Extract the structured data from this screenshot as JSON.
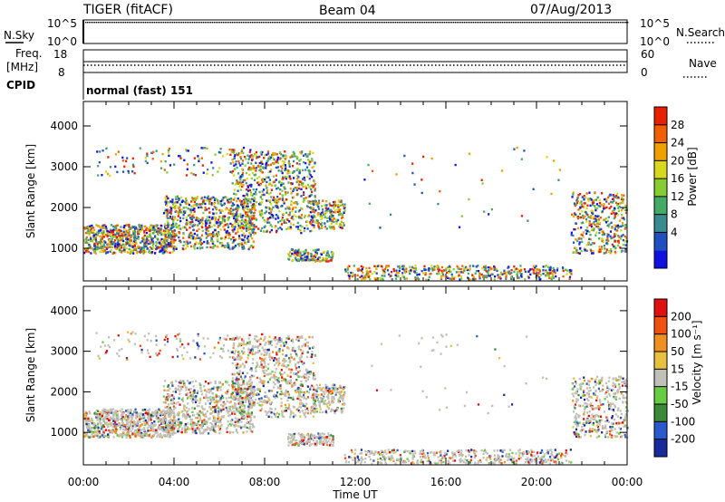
{
  "header": {
    "radar": "TIGER (fitACF)",
    "beam": "Beam 04",
    "date": "07/Aug/2013"
  },
  "params": {
    "nsky_label": "N.Sky",
    "nsky_ticks": [
      "10^5",
      "10^0"
    ],
    "nsearch_label": "N.Search",
    "nsearch_ticks": [
      "10^5",
      "10^0"
    ],
    "freq_label_1": "Freq.",
    "freq_label_2": "[MHz]",
    "freq_ticks": [
      "18",
      "8"
    ],
    "nave_label": "Nave",
    "nave_ticks": [
      "60",
      "0"
    ],
    "cpid_label": "CPID",
    "cpid_value": "normal (fast) 151"
  },
  "chart_data": [
    {
      "type": "heatmap",
      "name": "power",
      "ylabel": "Slant Range [km]",
      "yticks": [
        "4000",
        "3000",
        "2000",
        "1000"
      ],
      "xticks": [
        "00:00",
        "04:00",
        "08:00",
        "12:00",
        "16:00",
        "20:00",
        "00:00"
      ],
      "ylim": [
        200,
        4600
      ],
      "xlim_hours": [
        0,
        24
      ],
      "colorbar": {
        "label": "Power [dB]",
        "ticks": [
          "28",
          "24",
          "20",
          "16",
          "12",
          "8",
          "4"
        ],
        "colors": [
          "#1010e0",
          "#2050c0",
          "#3a8a90",
          "#44aa66",
          "#88cc33",
          "#d8d820",
          "#f0a000",
          "#f06000",
          "#e82000"
        ]
      }
    },
    {
      "type": "heatmap",
      "name": "velocity",
      "ylabel": "Slant Range [km]",
      "yticks": [
        "4000",
        "3000",
        "2000",
        "1000"
      ],
      "xticks": [
        "00:00",
        "04:00",
        "08:00",
        "12:00",
        "16:00",
        "20:00",
        "00:00"
      ],
      "xlabel": "Time UT",
      "ylim": [
        200,
        4600
      ],
      "xlim_hours": [
        0,
        24
      ],
      "colorbar": {
        "label": "Velocity [m s⁻¹]",
        "ticks": [
          "200",
          "100",
          "50",
          "15",
          "-15",
          "-50",
          "-100",
          "-200"
        ],
        "colors": [
          "#1a2a9a",
          "#2a5acc",
          "#3a8a3a",
          "#66cc44",
          "#c0c0b8",
          "#e8c040",
          "#f09020",
          "#f05010",
          "#e01010"
        ]
      }
    }
  ]
}
